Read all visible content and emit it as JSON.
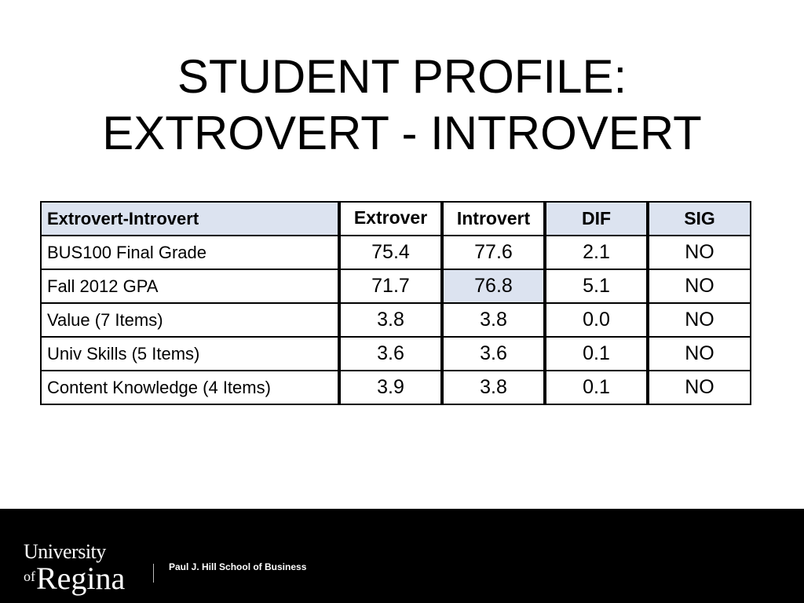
{
  "slide": {
    "title_line1": "STUDENT PROFILE:",
    "title_line2": "EXTROVERT - INTROVERT"
  },
  "table": {
    "headers": [
      "Extrovert-Introvert",
      "Extrover",
      "Introvert",
      "DIF",
      "SIG"
    ],
    "rows": [
      [
        "BUS100 Final Grade",
        "75.4",
        "77.6",
        "2.1",
        "NO"
      ],
      [
        "Fall 2012 GPA",
        "71.7",
        "76.8",
        "5.1",
        "NO"
      ],
      [
        "Value (7 Items)",
        "3.8",
        "3.8",
        "0.0",
        "NO"
      ],
      [
        "Univ Skills (5 Items)",
        "3.6",
        "3.6",
        "0.1",
        "NO"
      ],
      [
        "Content Knowledge (4 Items)",
        "3.9",
        "3.8",
        "0.1",
        "NO"
      ]
    ],
    "header_fill": "#dce3f0",
    "highlight_fill": "#dce3f0"
  },
  "footer": {
    "logo_line1": "University",
    "logo_of": "of",
    "logo_line2": "Regina",
    "school": "Paul J. Hill School of Business",
    "background": "#000000"
  }
}
